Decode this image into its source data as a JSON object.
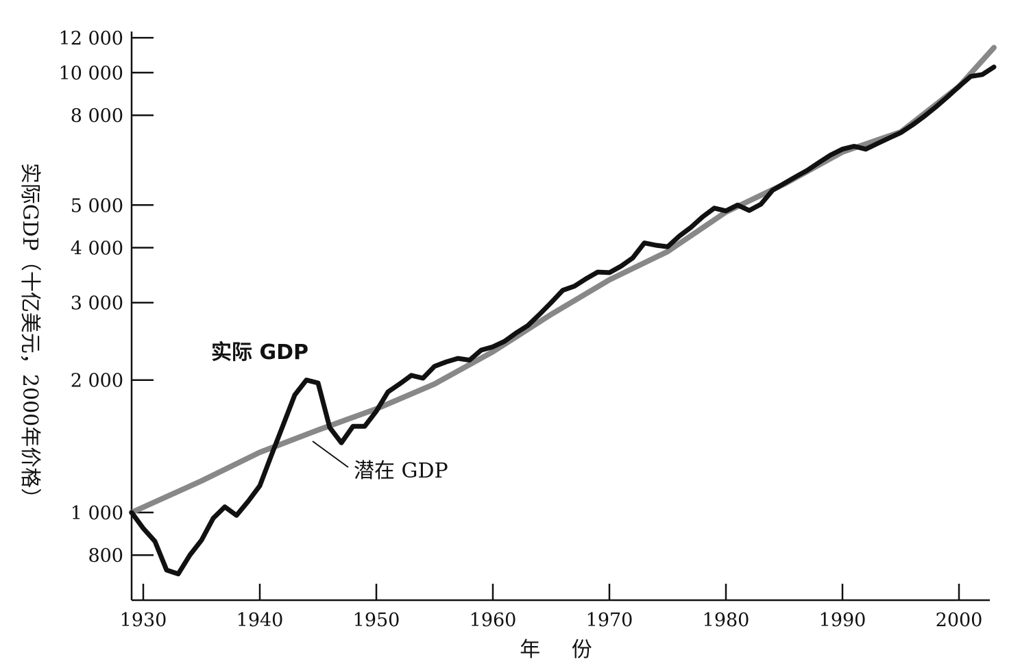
{
  "chart_data": {
    "type": "line",
    "title": "",
    "xlabel": "年 份",
    "ylabel": "实际GDP（十亿美元，2000年价格）",
    "yscale": "log",
    "xlim": [
      1929,
      2003
    ],
    "ylim": [
      660,
      12000
    ],
    "x_ticks": [
      1930,
      1940,
      1950,
      1960,
      1970,
      1980,
      1990,
      2000
    ],
    "x_tick_labels": [
      "1930",
      "1940",
      "1950",
      "1960",
      "1970",
      "1980",
      "1990",
      "2000"
    ],
    "y_ticks": [
      800,
      1000,
      2000,
      3000,
      4000,
      5000,
      8000,
      10000,
      12000
    ],
    "y_tick_labels": [
      "800",
      "1 000",
      "2 000",
      "3 000",
      "4 000",
      "5 000",
      "8 000",
      "10 000",
      "12 000"
    ],
    "annotations": [
      {
        "text": "实际 GDP",
        "target": "actual"
      },
      {
        "text": "潜在 GDP",
        "target": "potential"
      }
    ],
    "series": [
      {
        "name": "实际 GDP",
        "color": "#111111",
        "x": [
          1929,
          1930,
          1931,
          1932,
          1933,
          1934,
          1935,
          1936,
          1937,
          1938,
          1939,
          1940,
          1941,
          1942,
          1943,
          1944,
          1945,
          1946,
          1947,
          1948,
          1949,
          1950,
          1951,
          1952,
          1953,
          1954,
          1955,
          1956,
          1957,
          1958,
          1959,
          1960,
          1961,
          1962,
          1963,
          1964,
          1965,
          1966,
          1967,
          1968,
          1969,
          1970,
          1971,
          1972,
          1973,
          1974,
          1975,
          1976,
          1977,
          1978,
          1979,
          1980,
          1981,
          1982,
          1983,
          1984,
          1985,
          1986,
          1987,
          1988,
          1989,
          1990,
          1991,
          1992,
          1993,
          1994,
          1995,
          1996,
          1997,
          1998,
          1999,
          2000,
          2001,
          2002,
          2003
        ],
        "values": [
          1000,
          920,
          860,
          740,
          725,
          800,
          865,
          970,
          1030,
          985,
          1060,
          1150,
          1350,
          1580,
          1850,
          2000,
          1970,
          1560,
          1440,
          1570,
          1570,
          1700,
          1880,
          1960,
          2050,
          2020,
          2150,
          2200,
          2240,
          2220,
          2340,
          2380,
          2450,
          2560,
          2660,
          2820,
          3000,
          3200,
          3270,
          3400,
          3520,
          3510,
          3630,
          3790,
          4100,
          4050,
          4020,
          4250,
          4450,
          4700,
          4920,
          4850,
          5000,
          4860,
          5020,
          5400,
          5600,
          5800,
          6000,
          6250,
          6500,
          6700,
          6800,
          6700,
          6900,
          7100,
          7300,
          7600,
          7950,
          8350,
          8800,
          9300,
          9800,
          9900,
          10300
        ]
      },
      {
        "name": "潜在 GDP",
        "color": "#888888",
        "x": [
          1929,
          1935,
          1940,
          1945,
          1950,
          1955,
          1960,
          1965,
          1970,
          1975,
          1980,
          1985,
          1990,
          1995,
          2000,
          2003
        ],
        "values": [
          1000,
          1180,
          1370,
          1540,
          1720,
          1960,
          2320,
          2820,
          3380,
          3920,
          4820,
          5580,
          6600,
          7330,
          9300,
          11400
        ]
      }
    ]
  }
}
